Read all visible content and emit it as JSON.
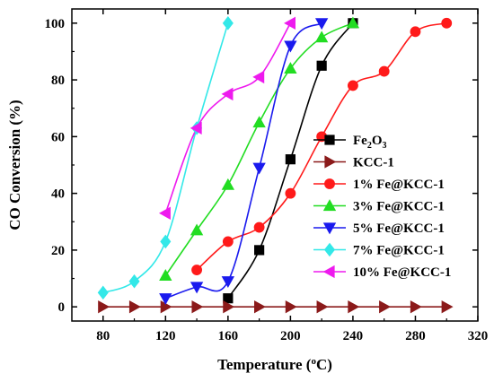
{
  "chart_data": {
    "type": "line",
    "xlabel": "Temperature (",
    "xlabel_sup": "o",
    "xlabel_tail": "C)",
    "ylabel": "CO Conversion (%)",
    "xlim": [
      60,
      320
    ],
    "ylim": [
      -5,
      105
    ],
    "xticks": [
      80,
      120,
      160,
      200,
      240,
      280,
      320
    ],
    "yticks": [
      0,
      20,
      40,
      60,
      80,
      100
    ],
    "x_tick_labels": [
      "80",
      "120",
      "160",
      "200",
      "240",
      "280",
      "320"
    ],
    "y_tick_labels": [
      "0",
      "20",
      "40",
      "60",
      "80",
      "100"
    ],
    "legend_position": "right",
    "series": [
      {
        "name": "Fe",
        "name_sub": "2",
        "name_tail": "O",
        "name_sub2": "3",
        "color": "#000000",
        "marker": "square",
        "x": [
          160,
          180,
          200,
          220,
          240
        ],
        "y": [
          3,
          20,
          52,
          85,
          100
        ]
      },
      {
        "name": "KCC-1",
        "color": "#8B1A1A",
        "marker": "triangle-right",
        "x": [
          80,
          100,
          120,
          140,
          160,
          180,
          200,
          220,
          240,
          260,
          280,
          300
        ],
        "y": [
          0,
          0,
          0,
          0,
          0,
          0,
          0,
          0,
          0,
          0,
          0,
          0
        ]
      },
      {
        "name": "1% Fe@KCC-1",
        "color": "#FF1A1A",
        "marker": "circle",
        "x": [
          140,
          160,
          180,
          200,
          220,
          240,
          260,
          280,
          300
        ],
        "y": [
          13,
          23,
          28,
          40,
          60,
          78,
          83,
          97,
          100
        ]
      },
      {
        "name": "3% Fe@KCC-1",
        "color": "#22DD22",
        "marker": "triangle-up",
        "x": [
          120,
          140,
          160,
          180,
          200,
          220,
          240
        ],
        "y": [
          11,
          27,
          43,
          65,
          84,
          95,
          100
        ]
      },
      {
        "name": "5% Fe@KCC-1",
        "color": "#1A1AEE",
        "marker": "triangle-down",
        "x": [
          120,
          140,
          160,
          180,
          200,
          220
        ],
        "y": [
          3,
          7,
          9,
          49,
          92,
          100
        ]
      },
      {
        "name": "7% Fe@KCC-1",
        "color": "#33E8E8",
        "marker": "diamond",
        "x": [
          80,
          100,
          120,
          140,
          160
        ],
        "y": [
          5,
          9,
          23,
          63,
          100
        ]
      },
      {
        "name": "10% Fe@KCC-1",
        "color": "#EE1AEE",
        "marker": "triangle-left",
        "x": [
          120,
          140,
          160,
          180,
          200
        ],
        "y": [
          33,
          63,
          75,
          81,
          100
        ]
      }
    ]
  }
}
